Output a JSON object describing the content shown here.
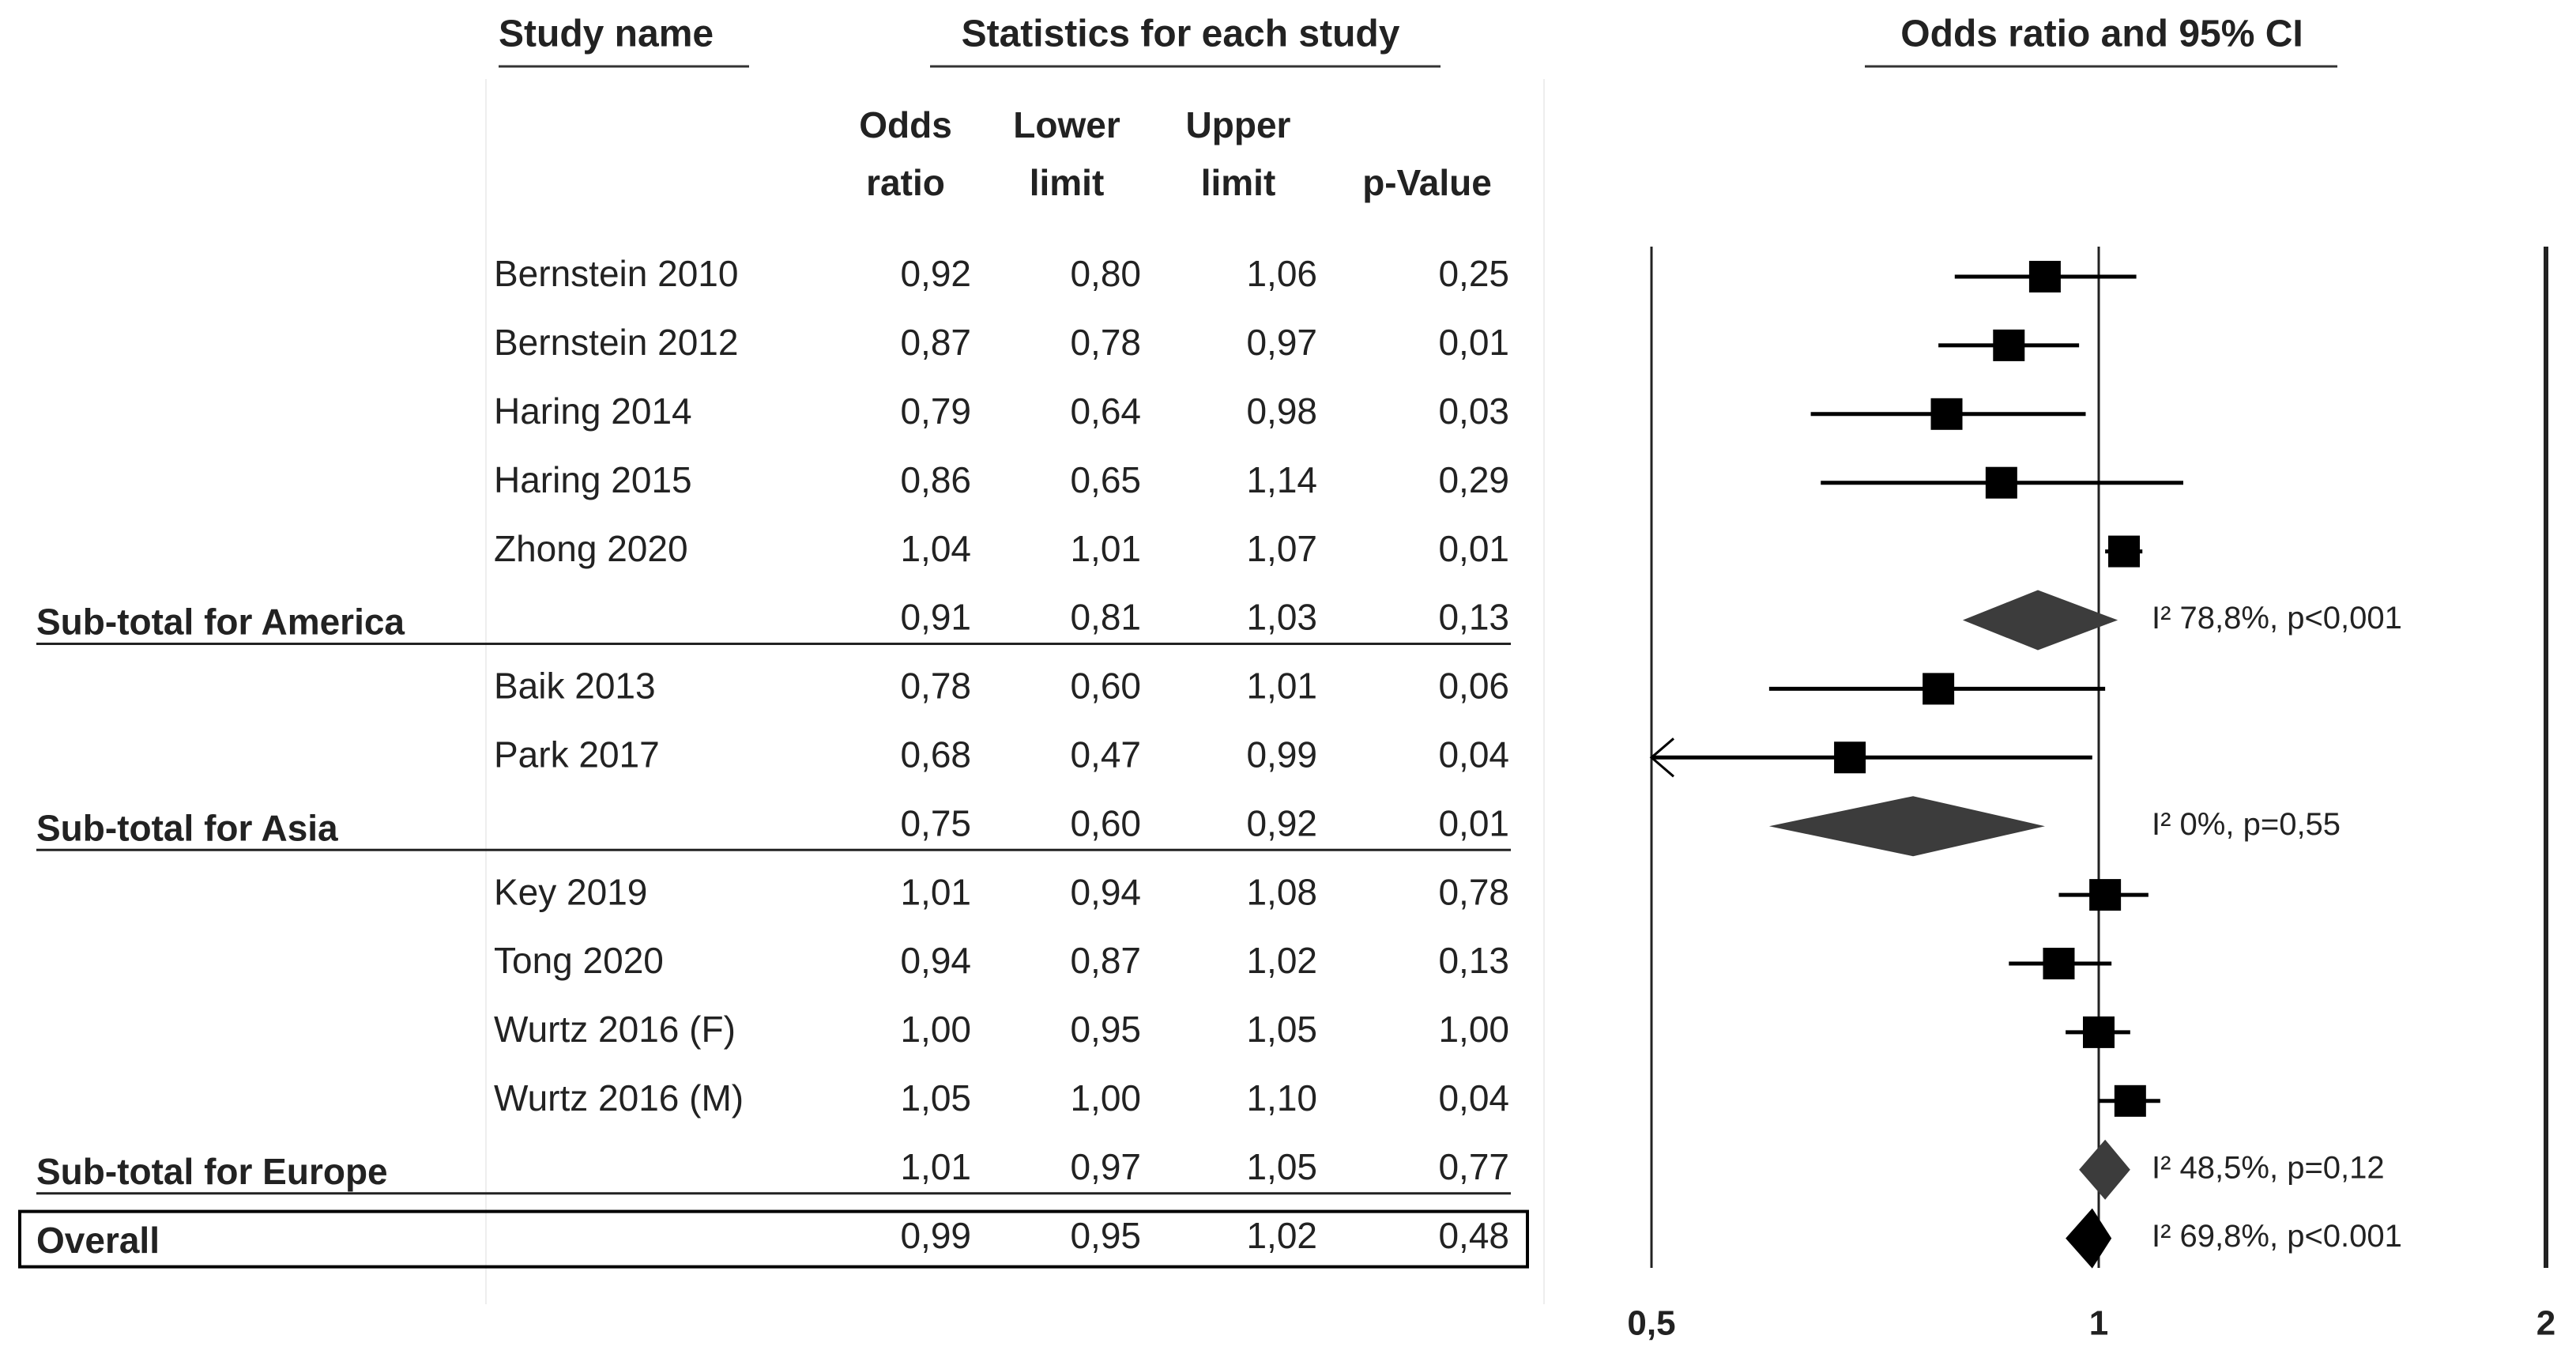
{
  "chart_data": {
    "type": "forest",
    "headers": {
      "study": "Study name",
      "statistics": "Statistics for each study",
      "plot": "Odds ratio and 95% CI",
      "columns": [
        [
          "Odds",
          "ratio"
        ],
        [
          "Lower",
          "limit"
        ],
        [
          "Upper",
          "limit"
        ],
        [
          "p-Value"
        ]
      ]
    },
    "rows": [
      {
        "name": "Bernstein 2010",
        "kind": "study",
        "values": [
          0.92,
          0.8,
          1.06,
          0.25
        ],
        "value_labels": [
          "0,92",
          "0,80",
          "1,06",
          "0,25"
        ]
      },
      {
        "name": "Bernstein 2012",
        "kind": "study",
        "values": [
          0.87,
          0.78,
          0.97,
          0.01
        ],
        "value_labels": [
          "0,87",
          "0,78",
          "0,97",
          "0,01"
        ]
      },
      {
        "name": "Haring 2014",
        "kind": "study",
        "values": [
          0.79,
          0.64,
          0.98,
          0.03
        ],
        "value_labels": [
          "0,79",
          "0,64",
          "0,98",
          "0,03"
        ]
      },
      {
        "name": "Haring 2015",
        "kind": "study",
        "values": [
          0.86,
          0.65,
          1.14,
          0.29
        ],
        "value_labels": [
          "0,86",
          "0,65",
          "1,14",
          "0,29"
        ]
      },
      {
        "name": "Zhong 2020",
        "kind": "study",
        "values": [
          1.04,
          1.01,
          1.07,
          0.01
        ],
        "value_labels": [
          "1,04",
          "1,01",
          "1,07",
          "0,01"
        ]
      },
      {
        "name": "Sub-total for America",
        "kind": "subtotal",
        "values": [
          0.91,
          0.81,
          1.03,
          0.13
        ],
        "value_labels": [
          "0,91",
          "0,81",
          "1,03",
          "0,13"
        ],
        "heterogeneity": "I² 78,8%, p<0,001"
      },
      {
        "name": "Baik 2013",
        "kind": "study",
        "values": [
          0.78,
          0.6,
          1.01,
          0.06
        ],
        "value_labels": [
          "0,78",
          "0,60",
          "1,01",
          "0,06"
        ]
      },
      {
        "name": "Park 2017",
        "kind": "study",
        "values": [
          0.68,
          0.47,
          0.99,
          0.04
        ],
        "value_labels": [
          "0,68",
          "0,47",
          "0,99",
          "0,04"
        ]
      },
      {
        "name": "Sub-total for Asia",
        "kind": "subtotal",
        "values": [
          0.75,
          0.6,
          0.92,
          0.01
        ],
        "value_labels": [
          "0,75",
          "0,60",
          "0,92",
          "0,01"
        ],
        "heterogeneity": "I² 0%, p=0,55"
      },
      {
        "name": "Key 2019",
        "kind": "study",
        "values": [
          1.01,
          0.94,
          1.08,
          0.78
        ],
        "value_labels": [
          "1,01",
          "0,94",
          "1,08",
          "0,78"
        ]
      },
      {
        "name": "Tong 2020",
        "kind": "study",
        "values": [
          0.94,
          0.87,
          1.02,
          0.13
        ],
        "value_labels": [
          "0,94",
          "0,87",
          "1,02",
          "0,13"
        ]
      },
      {
        "name": "Wurtz 2016 (F)",
        "kind": "study",
        "values": [
          1.0,
          0.95,
          1.05,
          1.0
        ],
        "value_labels": [
          "1,00",
          "0,95",
          "1,05",
          "1,00"
        ]
      },
      {
        "name": "Wurtz 2016 (M)",
        "kind": "study",
        "values": [
          1.05,
          1.0,
          1.1,
          0.04
        ],
        "value_labels": [
          "1,05",
          "1,00",
          "1,10",
          "0,04"
        ]
      },
      {
        "name": "Sub-total for Europe",
        "kind": "subtotal",
        "values": [
          1.01,
          0.97,
          1.05,
          0.77
        ],
        "value_labels": [
          "1,01",
          "0,97",
          "1,05",
          "0,77"
        ],
        "heterogeneity": "I² 48,5%, p=0,12"
      },
      {
        "name": "Overall",
        "kind": "overall",
        "values": [
          0.99,
          0.95,
          1.02,
          0.48
        ],
        "value_labels": [
          "0,99",
          "0,95",
          "1,02",
          "0,48"
        ],
        "heterogeneity": "I² 69,8%, p<0.001"
      }
    ],
    "xlim": [
      0.5,
      2
    ],
    "xticks": [
      {
        "value": 0.5,
        "label": "0,5"
      },
      1,
      2
    ],
    "log_x": true,
    "color": "#000000",
    "subtotal_color": "#3c3c3c"
  }
}
